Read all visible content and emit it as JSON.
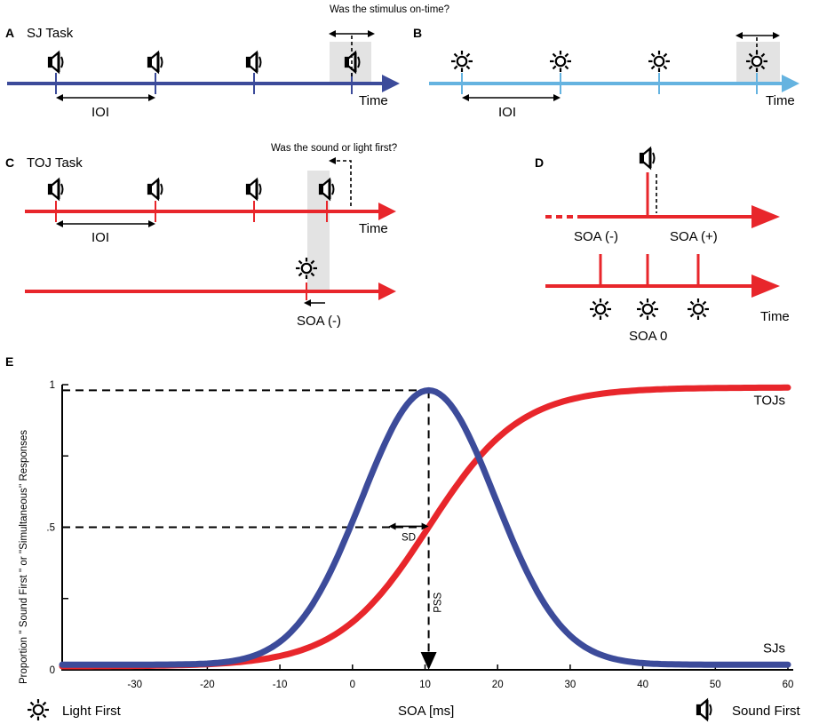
{
  "colors": {
    "blue_dark": "#3c4b9a",
    "blue_light": "#65b3e0",
    "red": "#e8262b",
    "gray": "#e3e3e3",
    "black": "#000000"
  },
  "panel_a": {
    "letter": "A",
    "title": "SJ Task",
    "question": "Was the stimulus on-time?",
    "interval": "IOI",
    "axis": "Time"
  },
  "panel_b": {
    "letter": "B",
    "interval": "IOI",
    "axis": "Time"
  },
  "panel_c": {
    "letter": "C",
    "title": "TOJ Task",
    "question": "Was the sound or light first?",
    "interval": "IOI",
    "axis": "Time",
    "soa": "SOA (-)"
  },
  "panel_d": {
    "letter": "D",
    "soa_neg": "SOA (-)",
    "soa_pos": "SOA (+)",
    "soa_zero": "SOA 0",
    "axis": "Time"
  },
  "panel_e": {
    "letter": "E"
  },
  "icons": {
    "light": "sun-icon",
    "sound": "speaker-icon"
  },
  "chart_data": {
    "type": "line",
    "xlabel": "SOA [ms]",
    "ylabel": "Proportion '' Sound First '' or ''Simultaneous'' Responses",
    "xlim": [
      -40,
      60
    ],
    "ylim": [
      0,
      1
    ],
    "x_ticks": [
      -30,
      -20,
      -10,
      0,
      10,
      20,
      30,
      40,
      50,
      60
    ],
    "y_ticks": [
      "0",
      ".5",
      "1"
    ],
    "series": [
      {
        "name": "SJs",
        "kind": "gaussian",
        "peak": 0.98,
        "mu": 10.5,
        "sigma": 9.2,
        "baseline": 0.018
      },
      {
        "name": "TOJs",
        "kind": "logistic",
        "x0": 10.5,
        "scale": 6.3,
        "min": 0.012,
        "max": 0.99
      }
    ],
    "annotations": {
      "pss": "PSS",
      "sd": "SD",
      "pss_x": 10.5,
      "pss_y": 0.5
    },
    "legend_left": "Light First",
    "legend_right": "Sound First"
  }
}
